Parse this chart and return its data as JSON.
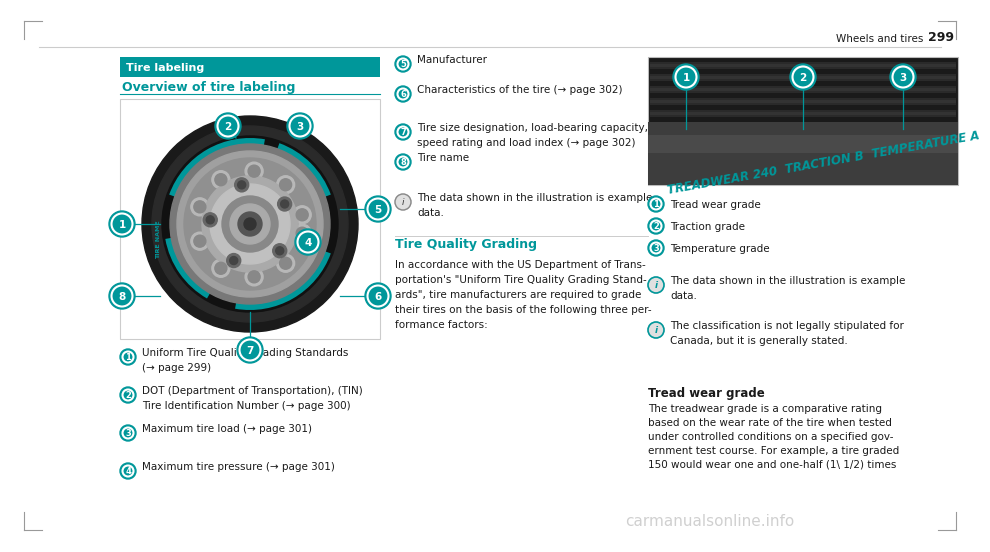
{
  "bg_color": "#ffffff",
  "teal_color": "#00979A",
  "dark_text": "#1a1a1a",
  "gray_text": "#444444",
  "section_title": "Tire labeling",
  "section_subtitle": "Overview of tire labeling",
  "bullet_items_left": [
    [
      "1",
      "Uniform Tire Quality Grading Standards",
      "(→ page 299)"
    ],
    [
      "2",
      "DOT (Department of Transportation), (TIN)",
      "Tire Identification Number (→ page 300)"
    ],
    [
      "3",
      "Maximum tire load (→ page 301)",
      ""
    ],
    [
      "4",
      "Maximum tire pressure (→ page 301)",
      ""
    ]
  ],
  "bullet_items_middle": [
    [
      "5",
      "Manufacturer",
      ""
    ],
    [
      "6",
      "Characteristics of the tire (→ page 302)",
      ""
    ],
    [
      "7",
      "Tire size designation, load-bearing capacity,",
      "speed rating and load index (→ page 302)"
    ],
    [
      "8",
      "Tire name",
      ""
    ]
  ],
  "info_item_middle_line1": "The data shown in the illustration is example",
  "info_item_middle_line2": "data.",
  "tire_quality_heading": "Tire Quality Grading",
  "tire_quality_lines": [
    "In accordance with the US Department of Trans-",
    "portation's \"Uniform Tire Quality Grading Stand-",
    "ards\", tire manufacturers are required to grade",
    "their tires on the basis of the following three per-",
    "formance factors:"
  ],
  "bullet_items_right": [
    [
      "1",
      "Tread wear grade"
    ],
    [
      "2",
      "Traction grade"
    ],
    [
      "3",
      "Temperature grade"
    ]
  ],
  "info_items_right": [
    [
      "The data shown in the illustration is example",
      "data."
    ],
    [
      "The classification is not legally stipulated for",
      "Canada, but it is generally stated."
    ]
  ],
  "tread_heading": "Tread wear grade",
  "tread_lines": [
    "The treadwear grade is a comparative rating",
    "based on the wear rate of the tire when tested",
    "under controlled conditions on a specified gov-",
    "ernment test course. For example, a tire graded",
    "150 would wear one and one-half (1\\ 1/2) times"
  ],
  "tire_sidewall_text": "TREADWEAR 240  TRACTION B  TEMPERATURE A",
  "watermark": "carmanualsonline.info",
  "page_num": "299",
  "page_label": "Wheels and tires"
}
